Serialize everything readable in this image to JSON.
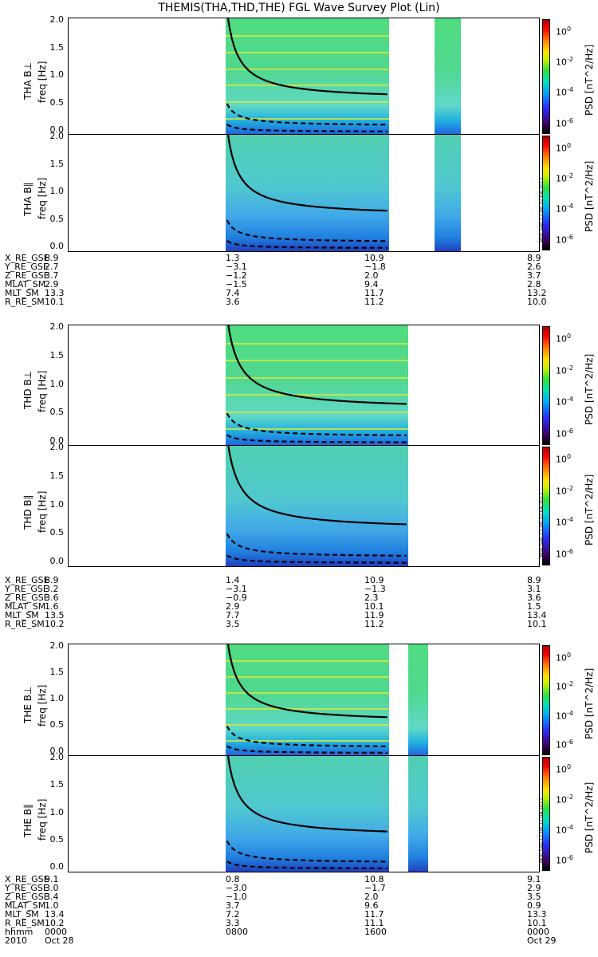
{
  "title": "THEMIS(THA,THD,THE) FGL Wave Survey Plot (Lin)",
  "colorbar": {
    "label": "PSD [nT^2/Hz]",
    "ticks": [
      "10^0",
      "10^-2",
      "10^-4",
      "10^-6"
    ],
    "stamp": "Mon Sep 17 08:37:04 2012"
  },
  "panels": [
    {
      "probe": "THA",
      "comp": "B⊥",
      "axis": "freq [Hz]",
      "yticks": [
        "2.0",
        "1.5",
        "1.0",
        "0.5",
        "0.0"
      ]
    },
    {
      "probe": "THA",
      "comp": "B∥",
      "axis": "freq [Hz]",
      "yticks": [
        "2.0",
        "1.5",
        "1.0",
        "0.5",
        "0.0"
      ]
    },
    {
      "probe": "THD",
      "comp": "B⊥",
      "axis": "freq [Hz]",
      "yticks": [
        "2.0",
        "1.5",
        "1.0",
        "0.5",
        "0.0"
      ]
    },
    {
      "probe": "THD",
      "comp": "B∥",
      "axis": "freq [Hz]",
      "yticks": [
        "2.0",
        "1.5",
        "1.0",
        "0.5",
        "0.0"
      ]
    },
    {
      "probe": "THE",
      "comp": "B⊥",
      "axis": "freq [Hz]",
      "yticks": [
        "2.0",
        "1.5",
        "1.0",
        "0.5",
        "0.0"
      ]
    },
    {
      "probe": "THE",
      "comp": "B∥",
      "axis": "freq [Hz]",
      "yticks": [
        "2.0",
        "1.5",
        "1.0",
        "0.5",
        "0.0"
      ]
    }
  ],
  "ephemeris": [
    {
      "rows": [
        [
          "X_RE_GSE",
          "8.9",
          "1.3",
          "10.9",
          "8.9"
        ],
        [
          "Y_RE_GSE",
          "2.7",
          "−3.1",
          "−1.8",
          "2.6"
        ],
        [
          "Z_RE_GSE",
          "3.7",
          "−1.2",
          "2.0",
          "3.7"
        ],
        [
          "MLAT_SM",
          "2.9",
          "−1.5",
          "9.4",
          "2.8"
        ],
        [
          "MLT_SM",
          "13.3",
          "7.4",
          "11.7",
          "13.2"
        ],
        [
          "R_RE_SM",
          "10.1",
          "3.6",
          "11.2",
          "10.0"
        ]
      ]
    },
    {
      "rows": [
        [
          "X_RE_GSE",
          "8.9",
          "1.4",
          "10.9",
          "8.9"
        ],
        [
          "Y_RE_GSE",
          "3.2",
          "−3.1",
          "−1.3",
          "3.1"
        ],
        [
          "Z_RE_GSE",
          "3.6",
          "−0.9",
          "2.3",
          "3.6"
        ],
        [
          "MLAT_SM",
          "1.6",
          "2.9",
          "10.1",
          "1.5"
        ],
        [
          "MLT_SM",
          "13.5",
          "7.7",
          "11.9",
          "13.4"
        ],
        [
          "R_RE_SM",
          "10.2",
          "3.5",
          "11.2",
          "10.1"
        ]
      ]
    },
    {
      "rows": [
        [
          "X_RE_GSE",
          "9.1",
          "0.8",
          "10.8",
          "9.1"
        ],
        [
          "Y_RE_GSE",
          "3.0",
          "−3.0",
          "−1.7",
          "2.9"
        ],
        [
          "Z_RE_GSE",
          "3.4",
          "−1.0",
          "2.0",
          "3.5"
        ],
        [
          "MLAT_SM",
          "1.0",
          "3.7",
          "9.6",
          "0.9"
        ],
        [
          "MLT_SM",
          "13.4",
          "7.2",
          "11.7",
          "13.3"
        ],
        [
          "R_RE_SM",
          "10.2",
          "3.3",
          "11.1",
          "10.1"
        ],
        [
          "hhmm",
          "0000",
          "0800",
          "1600",
          "0000"
        ],
        [
          "2010",
          "Oct 28",
          "",
          "",
          "Oct 29"
        ]
      ]
    }
  ],
  "chart_data": {
    "type": "heatmap",
    "title": "THEMIS(THA,THD,THE) FGL Wave Survey Plot (Lin)",
    "ylabel": "freq [Hz]",
    "ylim": [
      0,
      2.0
    ],
    "x_ticks": [
      "0000",
      "0800",
      "1600",
      "0000"
    ],
    "x_date": [
      "Oct 28",
      "Oct 29"
    ],
    "colorscale": "log PSD nT^2/Hz, 10^-7 to 10^1",
    "series": [
      {
        "name": "THA B⊥",
        "data_start": "0800",
        "data_end": "1620",
        "second_start": "1840",
        "second_end": "2000"
      },
      {
        "name": "THA B∥",
        "data_start": "0800",
        "data_end": "1620",
        "second_start": "1840",
        "second_end": "2000"
      },
      {
        "name": "THD B⊥",
        "data_start": "0800",
        "data_end": "1720"
      },
      {
        "name": "THD B∥",
        "data_start": "0800",
        "data_end": "1720"
      },
      {
        "name": "THE B⊥",
        "data_start": "0800",
        "data_end": "1620",
        "second_start": "1720",
        "second_end": "1820"
      },
      {
        "name": "THE B∥",
        "data_start": "0800",
        "data_end": "1620",
        "second_start": "1720",
        "second_end": "1820"
      }
    ]
  }
}
